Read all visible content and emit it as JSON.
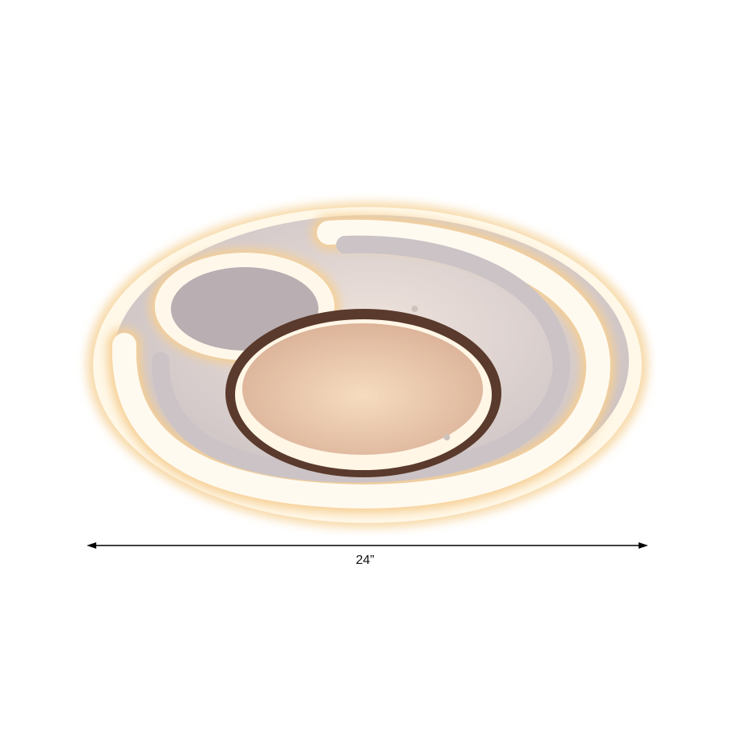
{
  "product": {
    "description_visible": "",
    "dimension_label": "24”",
    "colors": {
      "disc": "#d9d2d2",
      "glow": "#fff6df",
      "glow_edge": "#f3c98c",
      "ring": "#5a3a2c",
      "inner_warm": "#f0cfae"
    }
  }
}
